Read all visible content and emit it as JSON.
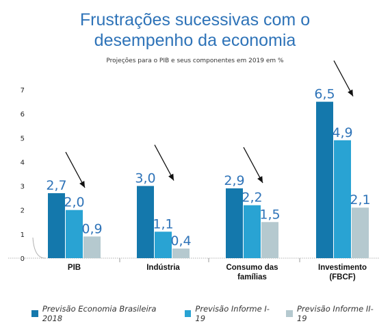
{
  "header": {
    "title_line1": "Frustrações sucessivas com o",
    "title_line2": "desempenho da economia",
    "subtitle": "Projeções para o PIB e seus componentes em 2019 em %"
  },
  "colors": {
    "series1": "#1478ac",
    "series2": "#29a3d3",
    "series3": "#b5c9cf",
    "value_label": "#2e73b8",
    "arrow": "#111111"
  },
  "chart_data": {
    "type": "bar",
    "categories": [
      [
        "PIB"
      ],
      [
        "Indústria"
      ],
      [
        "Consumo das",
        "famílias"
      ],
      [
        "Investimento",
        "(FBCF)"
      ]
    ],
    "series": [
      {
        "name": "Previsão Economia Brasileira 2018",
        "values": [
          2.7,
          3.0,
          2.9,
          6.5
        ],
        "labels": [
          "2,7",
          "3,0",
          "2,9",
          "6,5"
        ]
      },
      {
        "name": "Previsão Informe I-19",
        "values": [
          2.0,
          1.1,
          2.2,
          4.9
        ],
        "labels": [
          "2,0",
          "1,1",
          "2,2",
          "4,9"
        ]
      },
      {
        "name": "Previsão Informe II-19",
        "values": [
          0.9,
          0.4,
          1.5,
          2.1
        ],
        "labels": [
          "0,9",
          "0,4",
          "1,5",
          "2,1"
        ]
      }
    ],
    "yticks": [
      0,
      1,
      2,
      3,
      4,
      5,
      6,
      7
    ],
    "ylim": [
      0,
      7
    ],
    "grid": false,
    "legend_position": "bottom"
  }
}
